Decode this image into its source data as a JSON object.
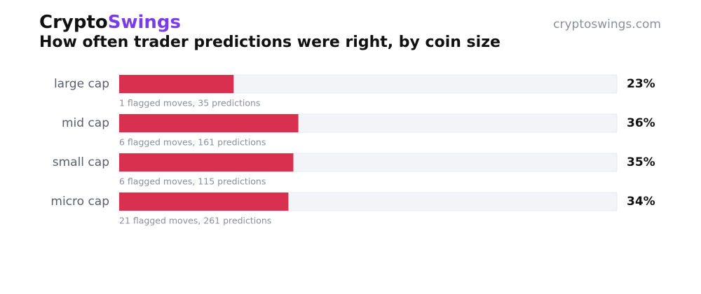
{
  "header": {
    "brand": "Crypto",
    "brand_accent": "Swings",
    "site": "cryptoswings.com"
  },
  "chart_data": {
    "type": "bar",
    "orientation": "horizontal",
    "title": "How often trader predictions were right, by coin size",
    "categories": [
      "large cap",
      "mid cap",
      "small cap",
      "micro cap"
    ],
    "values": [
      23,
      36,
      35,
      34
    ],
    "value_labels": [
      "23%",
      "36%",
      "35%",
      "34%"
    ],
    "notes": [
      "1 flagged moves, 35 predictions",
      "6 flagged moves, 161 predictions",
      "6 flagged moves, 115 predictions",
      "21 flagged moves, 261 predictions"
    ],
    "color": "#d93050",
    "track_color": "#f3f4f8",
    "xlim": [
      0,
      100
    ]
  }
}
